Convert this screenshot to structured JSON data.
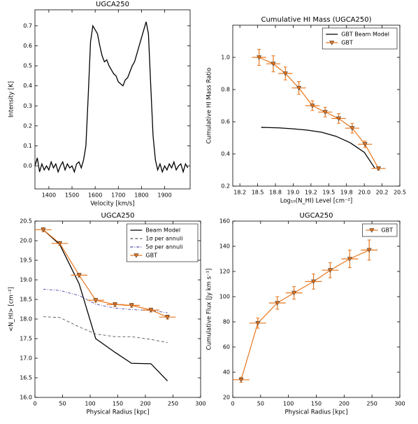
{
  "chart_data": [
    {
      "type": "line",
      "title": "UGCA250",
      "xlabel": "Velocity [km/s]",
      "ylabel": "Intensity [K]",
      "xlim": [
        1340,
        2010
      ],
      "xticks": [
        1400,
        1500,
        1600,
        1700,
        1800,
        1900
      ],
      "ylim": [
        -0.115,
        0.78
      ],
      "yticks": [
        {
          "value": 0,
          "label": "0.0"
        },
        0.1,
        0.2,
        0.3,
        0.4,
        0.5,
        0.6,
        0.7
      ],
      "series": [
        {
          "color": "#000000",
          "style": "solid",
          "x": [
            1340,
            1350,
            1360,
            1370,
            1380,
            1390,
            1400,
            1410,
            1420,
            1430,
            1440,
            1450,
            1460,
            1470,
            1480,
            1490,
            1500,
            1510,
            1520,
            1530,
            1540,
            1550,
            1560,
            1570,
            1580,
            1590,
            1600,
            1610,
            1620,
            1630,
            1640,
            1650,
            1660,
            1670,
            1680,
            1690,
            1700,
            1710,
            1720,
            1730,
            1740,
            1750,
            1760,
            1770,
            1780,
            1790,
            1800,
            1810,
            1820,
            1830,
            1840,
            1850,
            1860,
            1870,
            1880,
            1890,
            1900,
            1910,
            1920,
            1930,
            1940,
            1950,
            1960,
            1970,
            1980,
            1990,
            2000
          ],
          "values": [
            0.0,
            0.04,
            -0.03,
            0.01,
            -0.02,
            0.0,
            -0.02,
            0.02,
            -0.01,
            0.01,
            -0.03,
            0.0,
            0.02,
            -0.02,
            0.01,
            -0.01,
            0.0,
            -0.03,
            0.01,
            0.02,
            -0.01,
            0.03,
            0.1,
            0.35,
            0.62,
            0.7,
            0.68,
            0.66,
            0.6,
            0.55,
            0.52,
            0.53,
            0.5,
            0.48,
            0.46,
            0.45,
            0.42,
            0.41,
            0.4,
            0.43,
            0.44,
            0.47,
            0.5,
            0.52,
            0.56,
            0.6,
            0.64,
            0.68,
            0.72,
            0.66,
            0.4,
            0.15,
            0.03,
            -0.02,
            0.01,
            -0.03,
            0.0,
            -0.02,
            0.01,
            -0.01,
            0.02,
            -0.02,
            0.0,
            0.01,
            -0.03,
            0.01,
            -0.01
          ]
        }
      ]
    },
    {
      "type": "line",
      "title": "Cumulative HI Mass (UGCA250)",
      "xlabel": "Log₁₀(N_HI) Level [cm⁻²]",
      "ylabel": "Cumulative HI Mass Ratio",
      "xlim": [
        18.15,
        20.5
      ],
      "xticks": [
        {
          "value": 18.25,
          "label": "18.2"
        },
        18.5,
        {
          "value": 18.75,
          "label": "18.8"
        },
        {
          "value": 19,
          "label": "19.0"
        },
        {
          "value": 19.25,
          "label": "19.2"
        },
        19.5,
        {
          "value": 19.75,
          "label": "19.8"
        },
        {
          "value": 20,
          "label": "20.0"
        },
        {
          "value": 20.25,
          "label": "20.2"
        },
        20.5
      ],
      "ylim": [
        0.2,
        1.2
      ],
      "yticks": [
        0.2,
        0.4,
        0.6,
        0.8,
        {
          "value": 1,
          "label": "1.0"
        }
      ],
      "legend": "upper right",
      "series": [
        {
          "name": "GBT Beam Model",
          "color": "#000000",
          "style": "solid",
          "x": [
            18.55,
            18.8,
            19.0,
            19.2,
            19.4,
            19.6,
            19.8,
            20.0,
            20.15
          ],
          "values": [
            0.565,
            0.562,
            0.556,
            0.548,
            0.535,
            0.51,
            0.47,
            0.41,
            0.31
          ]
        },
        {
          "name": "GBT",
          "color": "#e8761c",
          "style": "errorbar",
          "x": [
            18.52,
            18.72,
            18.89,
            19.08,
            19.27,
            19.45,
            19.64,
            19.83,
            20.01,
            20.2
          ],
          "values": [
            1.0,
            0.96,
            0.9,
            0.81,
            0.7,
            0.66,
            0.62,
            0.56,
            0.46,
            0.31
          ],
          "xerr": [
            0.1,
            0.1,
            0.1,
            0.1,
            0.1,
            0.1,
            0.1,
            0.1,
            0.1,
            0.1
          ],
          "yerr": [
            0.05,
            0.05,
            0.04,
            0.04,
            0.03,
            0.03,
            0.03,
            0.03,
            0.02,
            0.01
          ]
        }
      ]
    },
    {
      "type": "line",
      "title": "UGCA250",
      "xlabel": "Physical Radius [kpc]",
      "ylabel": "<N_HI> [cm⁻²]",
      "xlim": [
        0,
        300
      ],
      "xticks": [
        0,
        50,
        100,
        150,
        200,
        250,
        300
      ],
      "ylim": [
        16,
        20.5
      ],
      "yticks": [
        {
          "value": 16,
          "label": "16.0"
        },
        16.5,
        {
          "value": 17,
          "label": "17.0"
        },
        17.5,
        {
          "value": 18,
          "label": "18.0"
        },
        18.5,
        {
          "value": 19,
          "label": "19.0"
        },
        19.5,
        {
          "value": 20,
          "label": "20.0"
        },
        20.5
      ],
      "legend": "upper right",
      "series": [
        {
          "name": "Beam Model",
          "color": "#000000",
          "style": "solid",
          "x": [
            15,
            45,
            80,
            110,
            145,
            175,
            210,
            240
          ],
          "values": [
            20.28,
            19.9,
            18.9,
            17.5,
            17.15,
            16.87,
            16.86,
            16.42
          ]
        },
        {
          "name": "1σ per annuli",
          "color": "#555555",
          "style": "dashed",
          "x": [
            15,
            45,
            80,
            110,
            145,
            175,
            210,
            240
          ],
          "values": [
            18.06,
            18.04,
            17.8,
            17.62,
            17.55,
            17.55,
            17.48,
            17.4
          ]
        },
        {
          "name": "5σ per annuli",
          "color": "#4a4aa8",
          "style": "dashdot",
          "x": [
            15,
            45,
            80,
            110,
            145,
            175,
            210,
            240
          ],
          "values": [
            18.76,
            18.73,
            18.6,
            18.38,
            18.28,
            18.24,
            18.22,
            18.16
          ]
        },
        {
          "name": "GBT",
          "color": "#e8761c",
          "style": "errorbar",
          "x": [
            15,
            45,
            80,
            110,
            145,
            175,
            210,
            240
          ],
          "values": [
            20.28,
            19.93,
            19.12,
            18.48,
            18.37,
            18.35,
            18.23,
            18.05
          ],
          "xerr": [
            15,
            15,
            15,
            15,
            15,
            15,
            15,
            15
          ],
          "yerr": [
            0.05,
            0.05,
            0.05,
            0.05,
            0.05,
            0.05,
            0.05,
            0.05
          ]
        }
      ]
    },
    {
      "type": "line",
      "title": "UGCA250",
      "xlabel": "Physical Radius [kpc]",
      "ylabel": "Cumulative Flux [Jy km s⁻¹]",
      "xlim": [
        0,
        300
      ],
      "xticks": [
        0,
        50,
        100,
        150,
        200,
        250,
        300
      ],
      "ylim": [
        20,
        160
      ],
      "yticks": [
        20,
        40,
        60,
        80,
        100,
        120,
        140,
        160
      ],
      "legend": "upper right",
      "series": [
        {
          "name": "GBT",
          "color": "#e8761c",
          "style": "errorbar",
          "x": [
            15,
            45,
            80,
            110,
            145,
            175,
            210,
            245
          ],
          "values": [
            34,
            79,
            95,
            103,
            112,
            121,
            130,
            137
          ],
          "xerr": [
            15,
            15,
            15,
            15,
            15,
            15,
            15,
            15
          ],
          "yerr": [
            2,
            4,
            5,
            5,
            6,
            6,
            7,
            8
          ]
        }
      ]
    }
  ]
}
